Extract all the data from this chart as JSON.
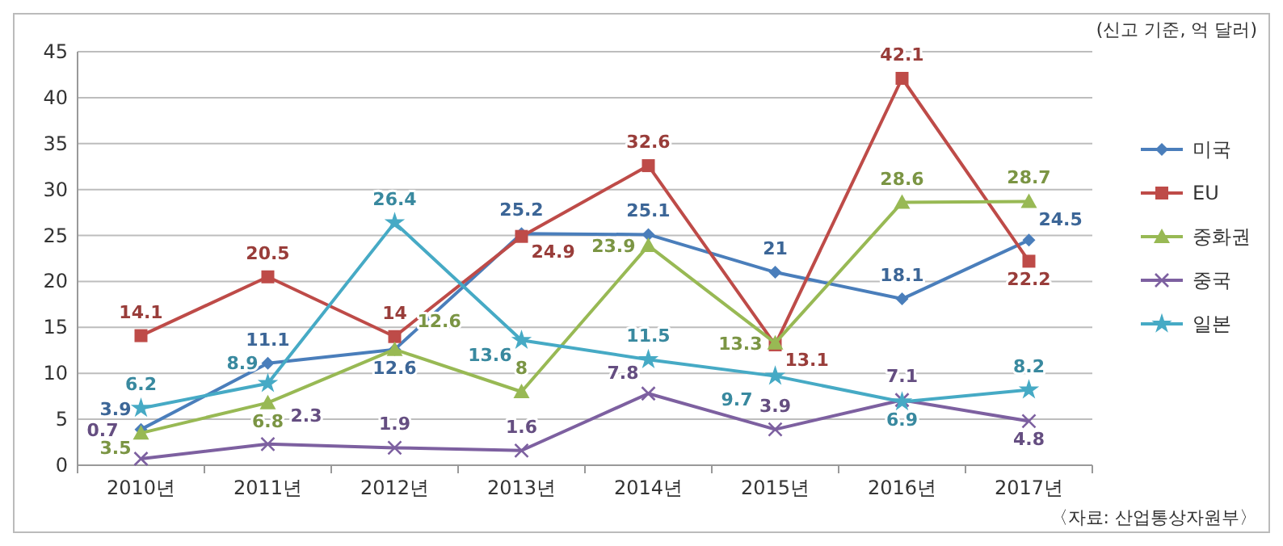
{
  "chart_data": {
    "type": "line",
    "categories": [
      "2010년",
      "2011년",
      "2012년",
      "2013년",
      "2014년",
      "2015년",
      "2016년",
      "2017년"
    ],
    "series": [
      {
        "name": "미국",
        "color": "#4a7ebb",
        "marker": "diamond",
        "values": [
          3.9,
          11.1,
          12.6,
          25.2,
          25.1,
          21,
          18.1,
          24.5
        ]
      },
      {
        "name": "EU",
        "color": "#be4b48",
        "marker": "square",
        "values": [
          14.1,
          20.5,
          14,
          24.9,
          32.6,
          13.1,
          42.1,
          22.2
        ]
      },
      {
        "name": "중화권",
        "color": "#98b954",
        "marker": "triangle",
        "values": [
          3.5,
          6.8,
          12.6,
          8,
          23.9,
          13.3,
          28.6,
          28.7
        ]
      },
      {
        "name": "중국",
        "color": "#7d60a0",
        "marker": "cross",
        "values": [
          0.7,
          2.3,
          1.9,
          1.6,
          7.8,
          3.9,
          7.1,
          4.8
        ]
      },
      {
        "name": "일본",
        "color": "#46aac5",
        "marker": "star",
        "values": [
          6.2,
          8.9,
          26.4,
          13.6,
          11.5,
          9.7,
          6.9,
          8.2
        ]
      }
    ],
    "ylim": [
      0,
      45
    ],
    "yticks": [
      0,
      5,
      10,
      15,
      20,
      25,
      30,
      35,
      40,
      45
    ],
    "grid": "y",
    "legend": "right",
    "data_labels": true,
    "annotations": [
      "(신고 기준, 억 달러)",
      "〈자료: 산업통상자원부〉"
    ]
  }
}
